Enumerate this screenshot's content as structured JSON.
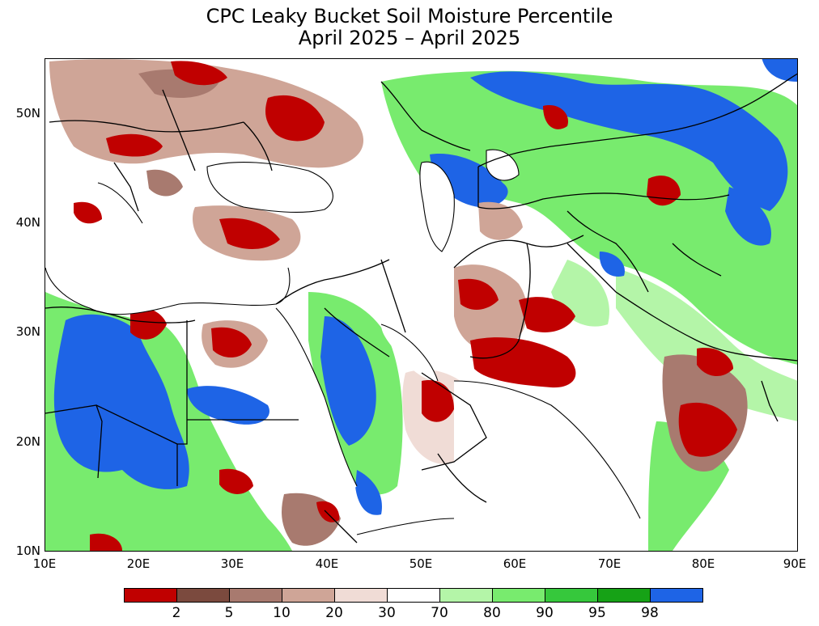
{
  "title": {
    "line1": "CPC Leaky Bucket Soil Moisture Percentile",
    "line2": "April 2025 – April 2025"
  },
  "map": {
    "lon_range": [
      10,
      90
    ],
    "lat_range": [
      10,
      55
    ],
    "x_ticks": [
      "10E",
      "20E",
      "30E",
      "40E",
      "50E",
      "60E",
      "70E",
      "80E",
      "90E"
    ],
    "y_ticks": [
      "10N",
      "20N",
      "30N",
      "40N",
      "50N"
    ]
  },
  "legend": {
    "colors": [
      "#c00000",
      "#7b4a3e",
      "#a87a6f",
      "#cfa597",
      "#f0dcd6",
      "#ffffff",
      "#b4f5a8",
      "#78eb6e",
      "#36c83c",
      "#16a216",
      "#1e64e6"
    ],
    "labels": [
      "2",
      "5",
      "10",
      "20",
      "30",
      "70",
      "80",
      "90",
      "95",
      "98"
    ]
  }
}
